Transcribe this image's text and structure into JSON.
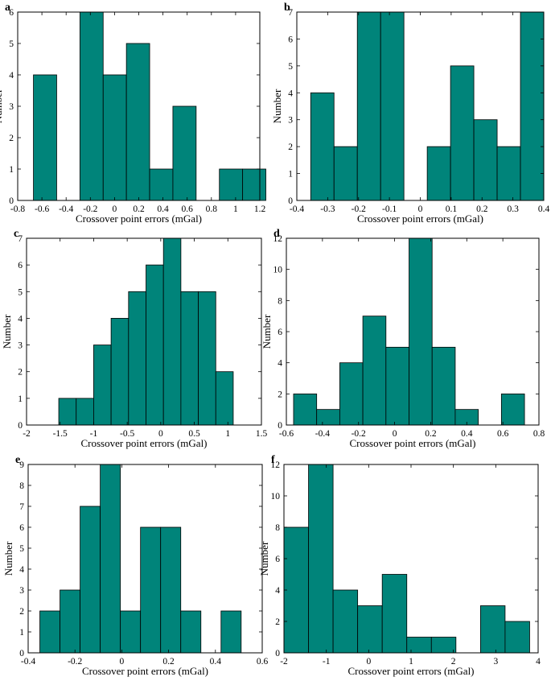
{
  "colors": {
    "bar_fill": "#00847a",
    "axis": "#000000"
  },
  "chart_data": [
    {
      "panel": "a",
      "type": "bar",
      "xlabel": "Crossover point errors (mGal)",
      "ylabel": "Number",
      "xlim": [
        -0.8,
        1.2
      ],
      "ylim": [
        0,
        6
      ],
      "xticks": [
        -0.8,
        -0.6,
        -0.4,
        -0.2,
        0,
        0.2,
        0.4,
        0.6,
        0.8,
        1,
        1.2
      ],
      "xticklabels": [
        "-0.8",
        "-0.6",
        "-0.4",
        "-0.2",
        "0",
        "0.2",
        "0.4",
        "0.6",
        "0.8",
        "1",
        "1.2"
      ],
      "yticks": [
        0,
        1,
        2,
        3,
        4,
        5,
        6
      ],
      "yticklabels": [
        "0",
        "1",
        "2",
        "3",
        "4",
        "5",
        "6"
      ],
      "bin_edges": [
        -0.67,
        -0.478,
        -0.286,
        -0.094,
        0.098,
        0.29,
        0.482,
        0.674,
        0.866,
        1.058,
        1.25
      ],
      "counts": [
        4,
        0,
        6,
        4,
        5,
        1,
        3,
        0,
        1,
        1
      ],
      "bin_range": [
        -0.67,
        1.25
      ]
    },
    {
      "panel": "b",
      "type": "bar",
      "xlabel": "Crossover point errors (mGal)",
      "ylabel": "Number",
      "xlim": [
        -0.4,
        0.4
      ],
      "ylim": [
        0,
        7
      ],
      "xticks": [
        -0.4,
        -0.3,
        -0.2,
        -0.1,
        0,
        0.1,
        0.2,
        0.3,
        0.4
      ],
      "xticklabels": [
        "-0.4",
        "-0.3",
        "-0.2",
        "-0.1",
        "0",
        "0.1",
        "0.2",
        "0.3",
        "0.4"
      ],
      "yticks": [
        0,
        1,
        2,
        3,
        4,
        5,
        6,
        7
      ],
      "yticklabels": [
        "0",
        "1",
        "2",
        "3",
        "4",
        "5",
        "6",
        "7"
      ],
      "counts": [
        4,
        2,
        7,
        7,
        0,
        2,
        5,
        3,
        2,
        7
      ],
      "bin_range": [
        -0.355,
        0.4
      ]
    },
    {
      "panel": "c",
      "type": "bar",
      "xlabel": "Crossover point errors (mGal)",
      "ylabel": "Number",
      "xlim": [
        -2,
        1.5
      ],
      "ylim": [
        0,
        7
      ],
      "xticks": [
        -2,
        -1.5,
        -1,
        -0.5,
        0,
        0.5,
        1,
        1.5
      ],
      "xticklabels": [
        "-2",
        "-1.5",
        "-1",
        "-0.5",
        "0",
        "0.5",
        "1",
        "1.5"
      ],
      "yticks": [
        0,
        1,
        2,
        3,
        4,
        5,
        6,
        7
      ],
      "yticklabels": [
        "0",
        "1",
        "2",
        "3",
        "4",
        "5",
        "6",
        "7"
      ],
      "counts": [
        1,
        1,
        3,
        4,
        5,
        6,
        7,
        5,
        5,
        2
      ],
      "bin_range": [
        -1.52,
        1.08
      ]
    },
    {
      "panel": "d",
      "type": "bar",
      "xlabel": "Crossover point errors (mGal)",
      "ylabel": "Number",
      "xlim": [
        -0.6,
        0.8
      ],
      "ylim": [
        0,
        12
      ],
      "xticks": [
        -0.6,
        -0.4,
        -0.2,
        0,
        0.2,
        0.4,
        0.6,
        0.8
      ],
      "xticklabels": [
        "-0.6",
        "-0.4",
        "-0.2",
        "0",
        "0.2",
        "0.4",
        "0.6",
        "0.8"
      ],
      "yticks": [
        0,
        2,
        4,
        6,
        8,
        10,
        12
      ],
      "yticklabels": [
        "0",
        "2",
        "4",
        "6",
        "8",
        "10",
        "12"
      ],
      "counts": [
        2,
        1,
        4,
        7,
        5,
        12,
        5,
        1,
        0,
        2
      ],
      "bin_range": [
        -0.56,
        0.72
      ]
    },
    {
      "panel": "e",
      "type": "bar",
      "xlabel": "Crossover point errors (mGal)",
      "ylabel": "Number",
      "xlim": [
        -0.4,
        0.6
      ],
      "ylim": [
        0,
        9
      ],
      "xticks": [
        -0.4,
        -0.2,
        0,
        0.2,
        0.4,
        0.6
      ],
      "xticklabels": [
        "-0.4",
        "-0.2",
        "0",
        "0.2",
        "0.4",
        "0.6"
      ],
      "yticks": [
        0,
        1,
        2,
        3,
        4,
        5,
        6,
        7,
        8,
        9
      ],
      "yticklabels": [
        "0",
        "1",
        "2",
        "3",
        "4",
        "5",
        "6",
        "7",
        "8",
        "9"
      ],
      "counts": [
        2,
        3,
        7,
        9,
        2,
        6,
        6,
        2,
        0,
        2
      ],
      "bin_range": [
        -0.35,
        0.51
      ]
    },
    {
      "panel": "f",
      "type": "bar",
      "xlabel": "Crossover point errors (mGal)",
      "ylabel": "Number",
      "xlim": [
        -2,
        4
      ],
      "ylim": [
        0,
        12
      ],
      "xticks": [
        -2,
        -1,
        0,
        1,
        2,
        3,
        4
      ],
      "xticklabels": [
        "-2",
        "-1",
        "0",
        "1",
        "2",
        "3",
        "4"
      ],
      "yticks": [
        0,
        2,
        4,
        6,
        8,
        10,
        12
      ],
      "yticklabels": [
        "0",
        "2",
        "4",
        "6",
        "8",
        "10",
        "12"
      ],
      "counts": [
        8,
        12,
        4,
        3,
        5,
        1,
        1,
        0,
        3,
        2
      ],
      "bin_range": [
        -2,
        3.8
      ]
    }
  ]
}
